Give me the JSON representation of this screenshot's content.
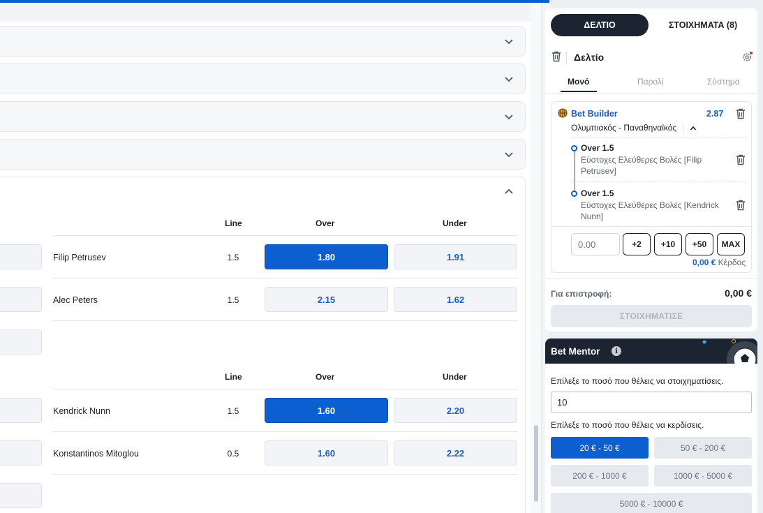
{
  "odds_table": {
    "headers": {
      "line": "Line",
      "over": "Over",
      "under": "Under"
    },
    "group1": [
      {
        "player": "Filip Petrusev",
        "line": "1.5",
        "over": "1.80",
        "under": "1.91",
        "over_selected": true
      },
      {
        "player": "Alec Peters",
        "line": "1.5",
        "over": "2.15",
        "under": "1.62",
        "over_selected": false
      }
    ],
    "group2": [
      {
        "player": "Kendrick Nunn",
        "line": "1.5",
        "over": "1.60",
        "under": "2.20",
        "over_selected": true
      },
      {
        "player": "Konstantinos Mitoglou",
        "line": "0.5",
        "over": "1.60",
        "under": "2.22",
        "over_selected": false
      }
    ]
  },
  "betslip": {
    "tabs": {
      "slip": "ΔΕΛΤΙΟ",
      "bets": "ΣΤΟΙΧΗΜΑΤΑ (8)"
    },
    "title": "Δελτίο",
    "sub_tabs": {
      "single": "Μονό",
      "parlay": "Παρολί",
      "system": "Σύστημα"
    },
    "bet": {
      "type": "Bet Builder",
      "odds": "2.87",
      "match": "Ολυμπιακός - Παναθηναϊκός",
      "selections": [
        {
          "name": "Over 1.5",
          "desc": "Εύστοχες Ελεύθερες Βολές [Filip Petrusev]"
        },
        {
          "name": "Over 1.5",
          "desc": "Εύστοχες Ελεύθερες Βολές [Kendrick Nunn]"
        }
      ],
      "stake_placeholder": "0.00",
      "quick_stakes": [
        "+2",
        "+10",
        "+50",
        "MAX"
      ],
      "profit_value": "0,00 €",
      "profit_label": "Κέρδος"
    },
    "return_label": "Για επιστροφή:",
    "return_value": "0,00 €",
    "place_button": "ΣΤΟΙΧΗΜΑΤΙΣΕ"
  },
  "mentor": {
    "title": "Bet Mentor",
    "info": "i",
    "stake_label": "Επίλεξε το ποσό που θέλεις να στοιχηματίσεις.",
    "stake_value": "10",
    "win_label": "Επίλεξε το ποσό που θέλεις να κερδίσεις.",
    "ranges": [
      "20 € - 50 €",
      "50 € - 200 €",
      "200 € - 1000 €",
      "1000 € - 5000 €",
      "5000 € - 10000 €"
    ],
    "selected_range": 0
  },
  "colors": {
    "accent": "#0b5fd0",
    "dark": "#1b2430"
  },
  "icons": [
    "chevron-down-icon",
    "chevron-up-icon",
    "trash-icon",
    "gear-icon",
    "basketball-icon",
    "info-icon",
    "soccer-ball-icon"
  ]
}
